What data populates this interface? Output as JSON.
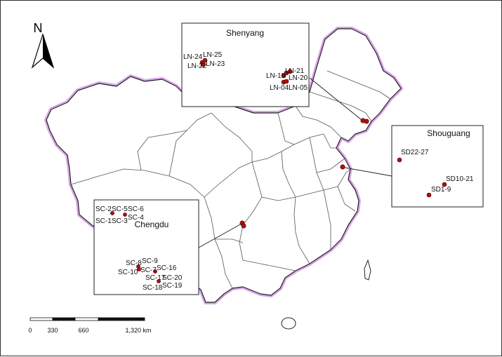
{
  "north_label": "N",
  "insets": {
    "shenyang": {
      "title": "Shenyang"
    },
    "shouguang": {
      "title": "Shouguang"
    },
    "chengdu": {
      "title": "Chengdu"
    }
  },
  "site_labels": {
    "shenyang": [
      "LN-24",
      "LN-25",
      "LN-22",
      "LN-23",
      "LN-21",
      "LN-19",
      "LN-20",
      "LN-04",
      "LN-05"
    ],
    "shouguang": [
      "SD22-27",
      "SD10-21",
      "SD1-9"
    ],
    "chengdu": [
      "SC-2",
      "SC-5",
      "SC-6",
      "SC-1",
      "SC-3",
      "SC-4",
      "SC-8",
      "SC-9",
      "SC-10",
      "SC-7",
      "SC-16",
      "SC-17",
      "SC-20",
      "SC-18",
      "SC-19"
    ]
  },
  "scale_bar": {
    "ticks": [
      "0",
      "330",
      "660",
      "1,320 km"
    ]
  },
  "colors": {
    "border": "#c58bd8",
    "dots": "#b01010",
    "province_lines": "#555555"
  }
}
